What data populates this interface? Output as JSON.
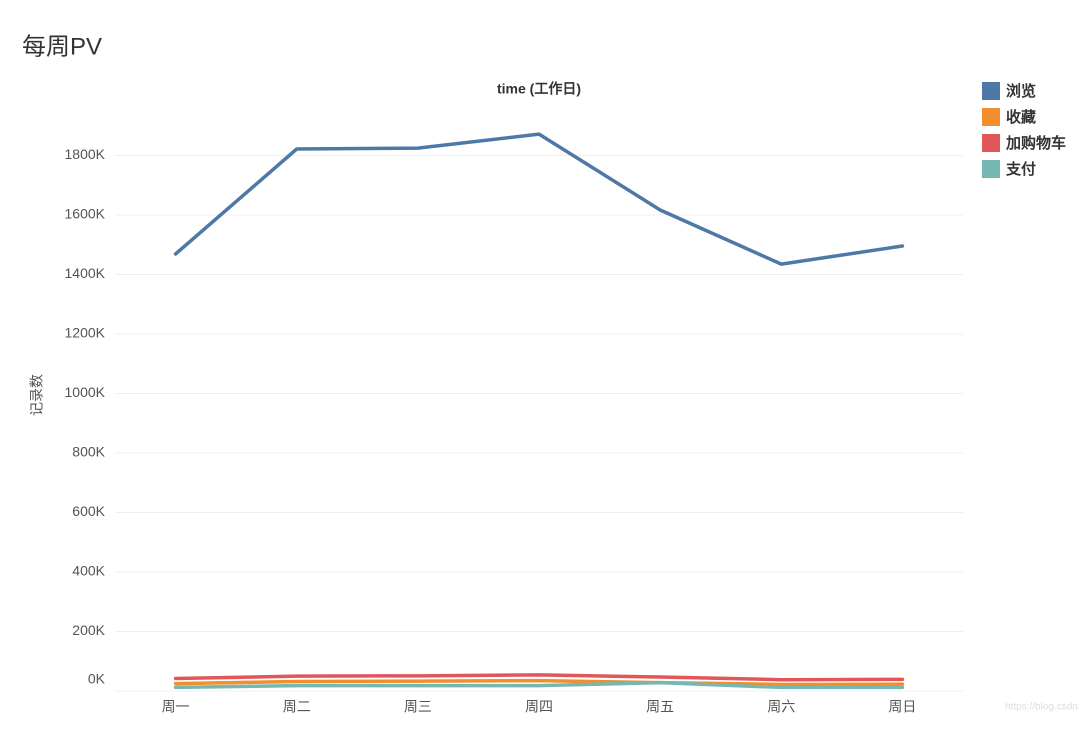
{
  "chart_data": {
    "type": "line",
    "title": "每周PV",
    "x_label": "time (工作日)",
    "y_label": "记录数",
    "watermark": "https://blog.csdn",
    "categories": [
      "周一",
      "周二",
      "周三",
      "周四",
      "周五",
      "周六",
      "周日"
    ],
    "series": [
      {
        "name": "浏览",
        "color": "#4e79a7",
        "values": [
          1469000,
          1822000,
          1825000,
          1872000,
          1617000,
          1435000,
          1496000
        ]
      },
      {
        "name": "收藏",
        "color": "#f28e2b",
        "values": [
          25000,
          32000,
          33000,
          35000,
          28000,
          22000,
          23000
        ]
      },
      {
        "name": "加购物车",
        "color": "#e15759",
        "values": [
          42000,
          50000,
          51000,
          54000,
          47000,
          38000,
          39000
        ]
      },
      {
        "name": "支付",
        "color": "#76b7b2",
        "values": [
          12000,
          18000,
          18000,
          18000,
          28000,
          12000,
          12000
        ]
      }
    ],
    "ylim": [
      0,
      1980000
    ],
    "yticks": [
      {
        "value": 0,
        "label": "0K"
      },
      {
        "value": 200000,
        "label": "200K"
      },
      {
        "value": 400000,
        "label": "400K"
      },
      {
        "value": 600000,
        "label": "600K"
      },
      {
        "value": 800000,
        "label": "800K"
      },
      {
        "value": 1000000,
        "label": "1000K"
      },
      {
        "value": 1200000,
        "label": "1200K"
      },
      {
        "value": 1400000,
        "label": "1400K"
      },
      {
        "value": 1600000,
        "label": "1600K"
      },
      {
        "value": 1800000,
        "label": "1800K"
      }
    ],
    "grid": true
  }
}
